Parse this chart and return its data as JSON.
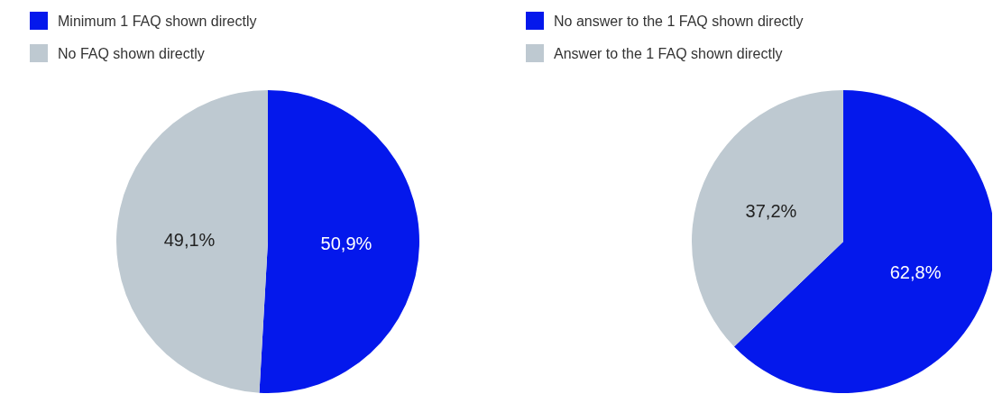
{
  "chart_data": [
    {
      "type": "pie",
      "categories": [
        "Minimum 1 FAQ shown directly",
        "No FAQ shown directly"
      ],
      "values": [
        50.9,
        49.1
      ],
      "colors": [
        "#0418ec",
        "#bec9d1"
      ],
      "value_labels": [
        "50,9%",
        "49,1%"
      ],
      "legend": "top left"
    },
    {
      "type": "pie",
      "categories": [
        "No answer to the 1 FAQ shown directly",
        "Answer to the 1 FAQ shown directly"
      ],
      "values": [
        62.8,
        37.2
      ],
      "colors": [
        "#0418ec",
        "#bec9d1"
      ],
      "value_labels": [
        "62,8%",
        "37,2%"
      ],
      "legend": "top left"
    }
  ]
}
